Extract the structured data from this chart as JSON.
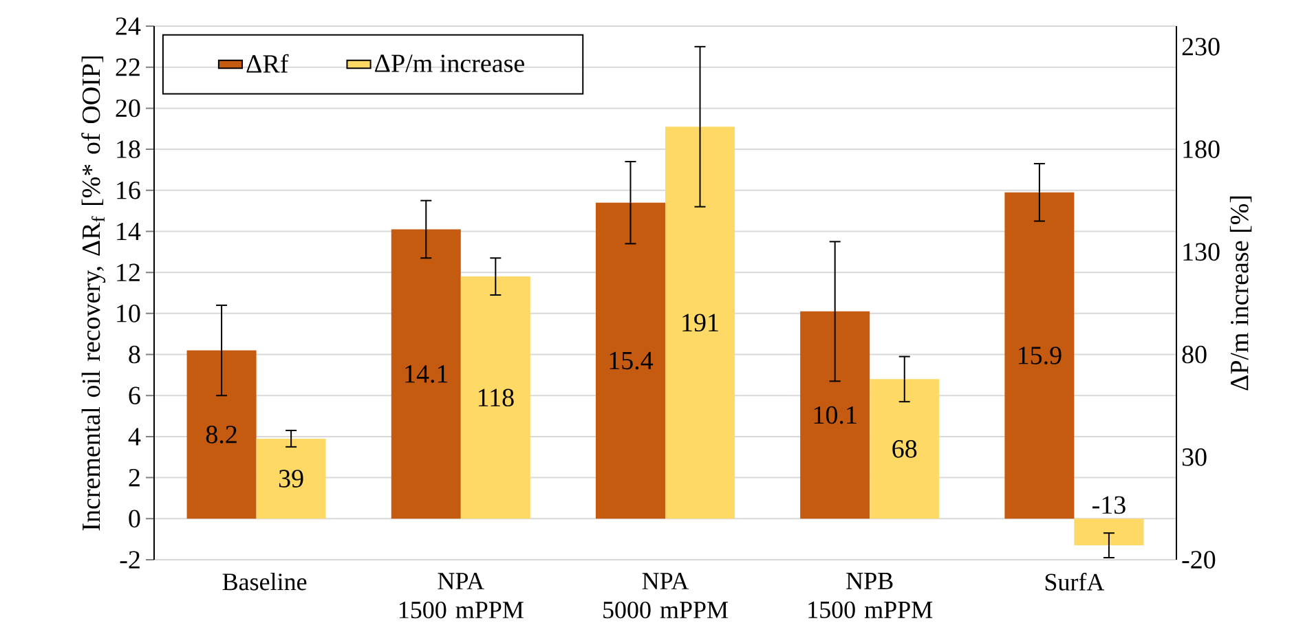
{
  "chart_data": {
    "type": "bar",
    "categories": [
      "Baseline",
      "NPA 1500 mPPM",
      "NPA 5000 mPPM",
      "NPB 1500 mPPM",
      "SurfA"
    ],
    "series": [
      {
        "name": "ΔRf",
        "color": "#c55a11",
        "values": [
          8.2,
          14.1,
          15.4,
          10.1,
          15.9
        ],
        "errors": [
          2.2,
          1.4,
          2.0,
          3.4,
          1.4
        ]
      },
      {
        "name": "ΔP/m increase",
        "color": "#ffd966",
        "axis": "y2",
        "values": [
          39,
          118,
          191,
          68,
          -13
        ],
        "errors": [
          4,
          9,
          39,
          11,
          6
        ]
      }
    ],
    "ylabel": "Incremental oil recovery, ΔR$_{f}$ [%* of OOIP]",
    "y2label": "ΔP/m increase [%]",
    "ylim": [
      -2,
      24
    ],
    "yticks": [
      -2,
      0,
      2,
      4,
      6,
      8,
      10,
      12,
      14,
      16,
      18,
      20,
      22,
      24
    ],
    "y2lim": [
      -20,
      240
    ],
    "y2ticks": [
      -20,
      30,
      80,
      130,
      180,
      230
    ],
    "grid": "y",
    "legend": "top left",
    "data_labels": true
  }
}
